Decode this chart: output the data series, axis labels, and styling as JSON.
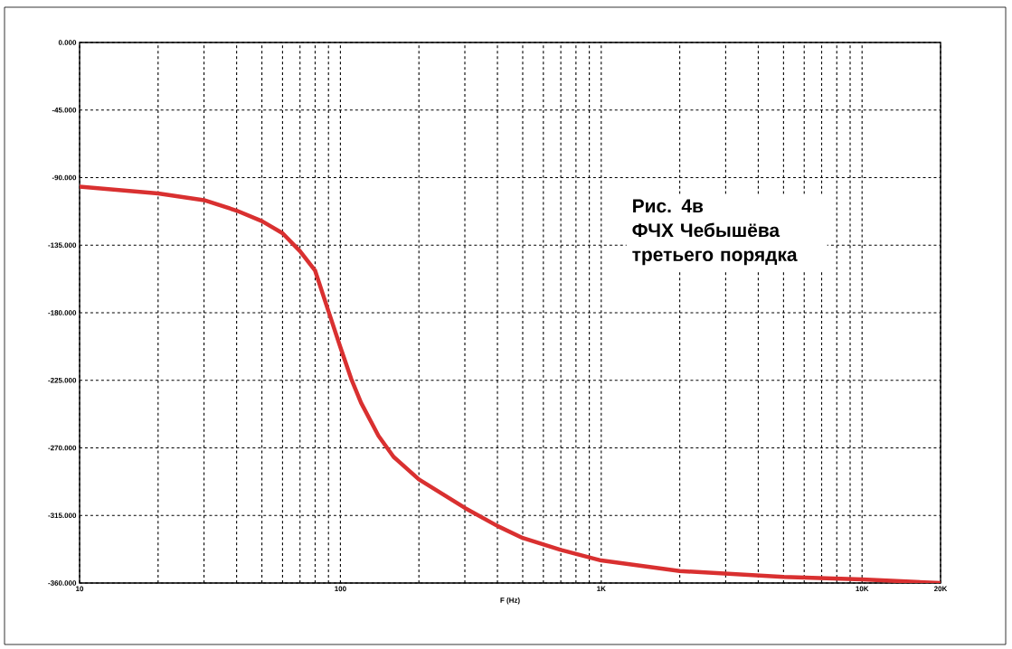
{
  "chart_data": {
    "type": "line",
    "xlabel": "F (Hz)",
    "log": "x",
    "annotations": [
      "Рис. 4в",
      "ФЧХ Чебышёва третьего порядка"
    ],
    "xlim": [
      10,
      20000
    ],
    "xticks": [
      10,
      100,
      {
        "value": 1000,
        "label": "1K"
      },
      {
        "value": 10000,
        "label": "10K"
      },
      {
        "value": 20000,
        "label": "20K"
      }
    ],
    "ylim": [
      -360,
      0
    ],
    "yticks": [
      {
        "value": 0,
        "label": "0.000"
      },
      {
        "value": -45,
        "label": "-45.000"
      },
      {
        "value": -90,
        "label": "-90.000"
      },
      {
        "value": -135,
        "label": "-135.000"
      },
      {
        "value": -180,
        "label": "-180.000"
      },
      {
        "value": -225,
        "label": "-225.000"
      },
      {
        "value": -270,
        "label": "-270.000"
      },
      {
        "value": -315,
        "label": "-315.000"
      },
      {
        "value": -360,
        "label": "-360.000"
      }
    ],
    "grid": true,
    "marker": "none",
    "line_style": "solid",
    "x": [
      10,
      20,
      30,
      40,
      50,
      60,
      70,
      80,
      90,
      100,
      110,
      120,
      140,
      160,
      200,
      300,
      400,
      500,
      700,
      1000,
      2000,
      5000,
      10000,
      20000
    ],
    "series": [
      {
        "color": "#d93030",
        "values": [
          -96,
          -100.5,
          -105,
          -112,
          -119,
          -127,
          -139,
          -152,
          -179,
          -203,
          -224,
          -240,
          -262,
          -276,
          -291,
          -310,
          -322,
          -330,
          -338,
          -345,
          -352,
          -356,
          -357.6,
          -360
        ]
      }
    ]
  }
}
